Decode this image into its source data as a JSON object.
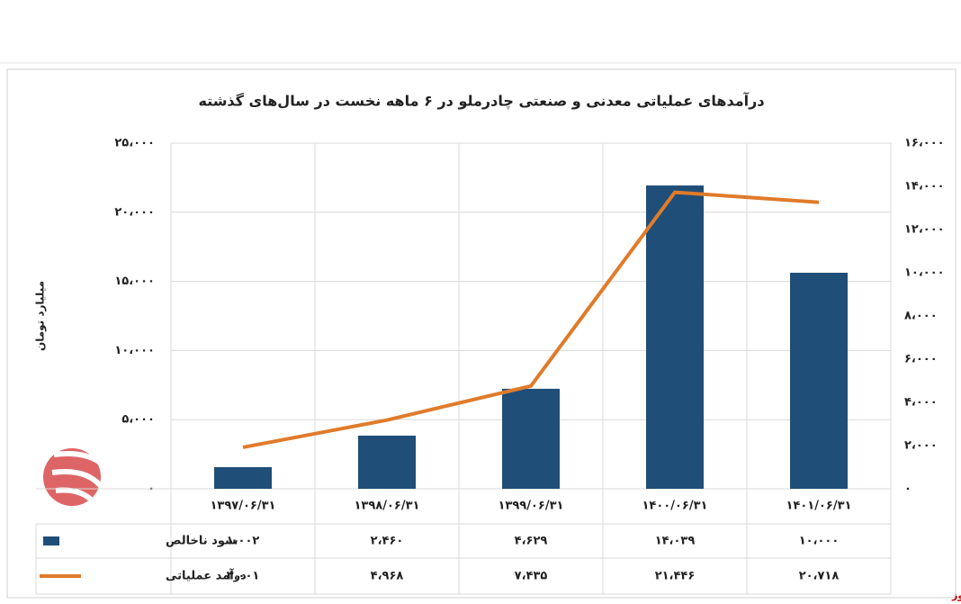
{
  "chart_data": {
    "type": "bar-line",
    "title": "درآمدهای عملیاتی معدنی و صنعتی چادرملو در ۶ ماهه نخست در سال‌های گذشته",
    "y_label": "میلیارد تومان",
    "watermark": "بورس نیوز",
    "categories": [
      "۱۳۹۷/۰۶/۳۱",
      "۱۳۹۸/۰۶/۳۱",
      "۱۳۹۹/۰۶/۳۱",
      "۱۴۰۰/۰۶/۳۱",
      "۱۴۰۱/۰۶/۳۱"
    ],
    "series": [
      {
        "name": "سود ناخالص",
        "color": "#1f4e79",
        "kind": "bar",
        "axis": "y2",
        "values": [
          1002,
          2460,
          4629,
          14039,
          10000
        ],
        "value_labels": [
          "۱،۰۰۲",
          "۲،۴۶۰",
          "۴،۶۲۹",
          "۱۴،۰۳۹",
          "۱۰،۰۰۰"
        ]
      },
      {
        "name": "درآمد عملیاتی",
        "color": "#e07b2a",
        "kind": "line",
        "axis": "y",
        "values": [
          3001,
          4968,
          7435,
          21446,
          20718
        ],
        "value_labels": [
          "۳،۰۰۱",
          "۴،۹۶۸",
          "۷،۴۳۵",
          "۲۱،۴۴۶",
          "۲۰،۷۱۸"
        ]
      }
    ],
    "ylim": [
      0,
      25000
    ],
    "yticks": [
      {
        "value": 0,
        "label": "۰"
      },
      {
        "value": 5000,
        "label": "۵،۰۰۰"
      },
      {
        "value": 10000,
        "label": "۱۰،۰۰۰"
      },
      {
        "value": 15000,
        "label": "۱۵،۰۰۰"
      },
      {
        "value": 20000,
        "label": "۲۰،۰۰۰"
      },
      {
        "value": 25000,
        "label": "۲۵،۰۰۰"
      }
    ],
    "y2lim": [
      0,
      16000
    ],
    "y2ticks": [
      {
        "value": 0,
        "label": "۰"
      },
      {
        "value": 2000,
        "label": "۲،۰۰۰"
      },
      {
        "value": 4000,
        "label": "۴،۰۰۰"
      },
      {
        "value": 6000,
        "label": "۶،۰۰۰"
      },
      {
        "value": 8000,
        "label": "۸،۰۰۰"
      },
      {
        "value": 10000,
        "label": "۱۰،۰۰۰"
      },
      {
        "value": 12000,
        "label": "۱۲،۰۰۰"
      },
      {
        "value": 14000,
        "label": "۱۴،۰۰۰"
      },
      {
        "value": 16000,
        "label": "۱۶،۰۰۰"
      }
    ],
    "grid": true
  }
}
